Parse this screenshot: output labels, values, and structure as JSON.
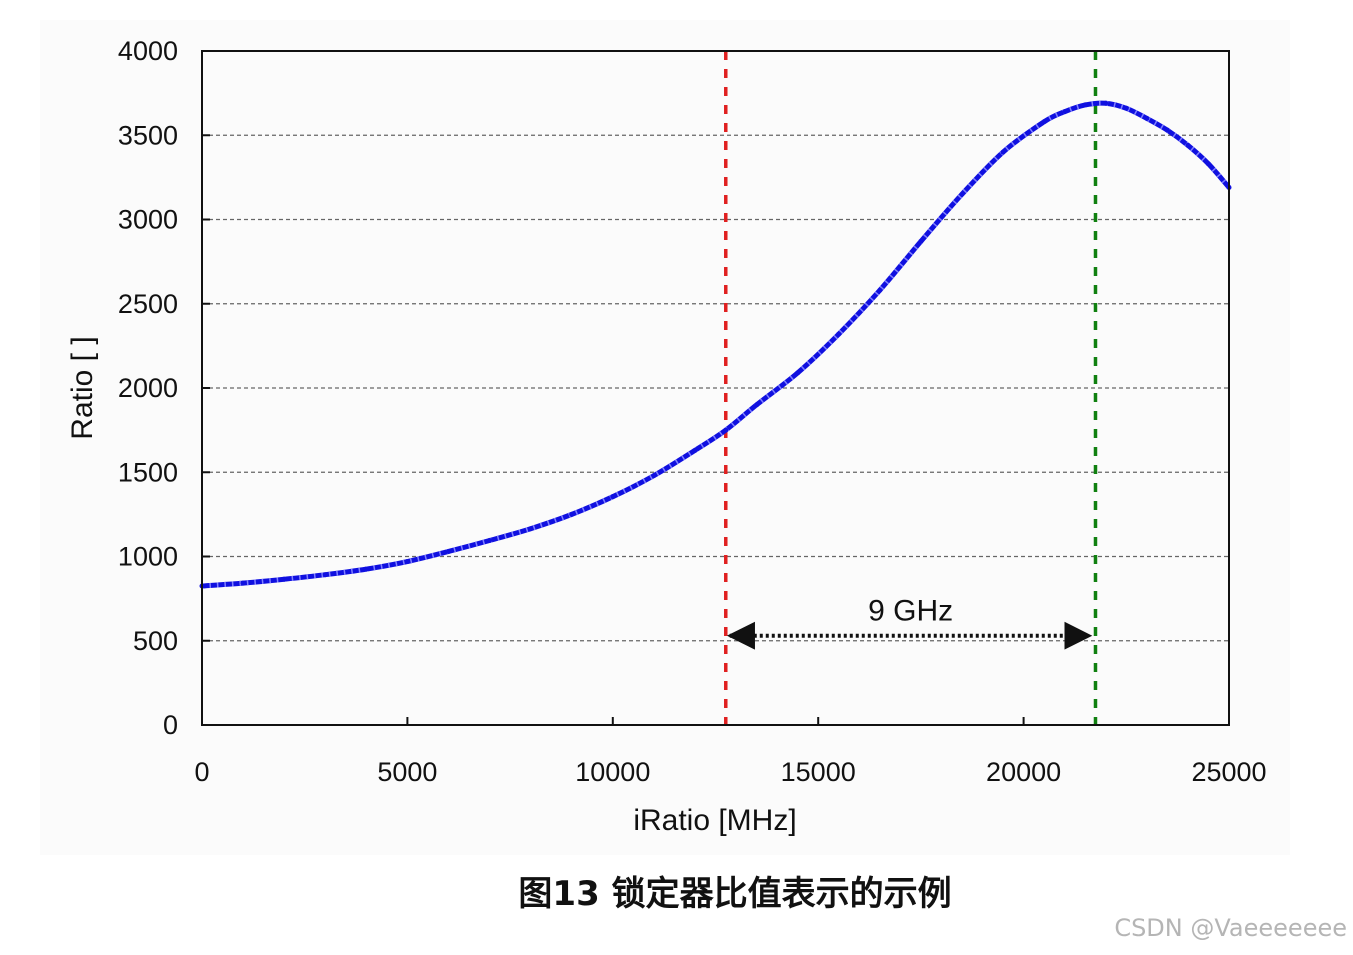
{
  "chart_data": {
    "type": "line",
    "xlabel": "iRatio [MHz]",
    "ylabel": "Ratio [ ]",
    "xlim": [
      0,
      25000
    ],
    "ylim": [
      0,
      4000
    ],
    "xticks": [
      "0",
      "5000",
      "10000",
      "15000",
      "20000",
      "25000"
    ],
    "yticks": [
      "0",
      "500",
      "1000",
      "1500",
      "2000",
      "2500",
      "3000",
      "3500",
      "4000"
    ],
    "grid": "horizontal dashed",
    "series": [
      {
        "color": "#1010e0",
        "marker": "x",
        "points": [
          [
            0,
            825
          ],
          [
            1000,
            842
          ],
          [
            2000,
            865
          ],
          [
            3000,
            892
          ],
          [
            4000,
            925
          ],
          [
            5000,
            970
          ],
          [
            6000,
            1030
          ],
          [
            7000,
            1095
          ],
          [
            8000,
            1165
          ],
          [
            9000,
            1250
          ],
          [
            10000,
            1355
          ],
          [
            11000,
            1480
          ],
          [
            12000,
            1630
          ],
          [
            12750,
            1750
          ],
          [
            13500,
            1900
          ],
          [
            14500,
            2090
          ],
          [
            15500,
            2320
          ],
          [
            16500,
            2580
          ],
          [
            17500,
            2870
          ],
          [
            18500,
            3150
          ],
          [
            19500,
            3400
          ],
          [
            20500,
            3580
          ],
          [
            21000,
            3640
          ],
          [
            21500,
            3680
          ],
          [
            22000,
            3690
          ],
          [
            22500,
            3660
          ],
          [
            23000,
            3600
          ],
          [
            23500,
            3530
          ],
          [
            24000,
            3440
          ],
          [
            24500,
            3330
          ],
          [
            25000,
            3190
          ]
        ]
      }
    ],
    "vlines": [
      {
        "x": 12750,
        "color": "#e02020"
      },
      {
        "x": 21750,
        "color": "#108010"
      }
    ],
    "annotation": {
      "text": "9 GHz",
      "x_from": 12750,
      "x_to": 21750,
      "y": 530
    }
  },
  "caption": "图13 锁定器比值表示的示例",
  "watermark": "CSDN @Vaeeeeeee"
}
